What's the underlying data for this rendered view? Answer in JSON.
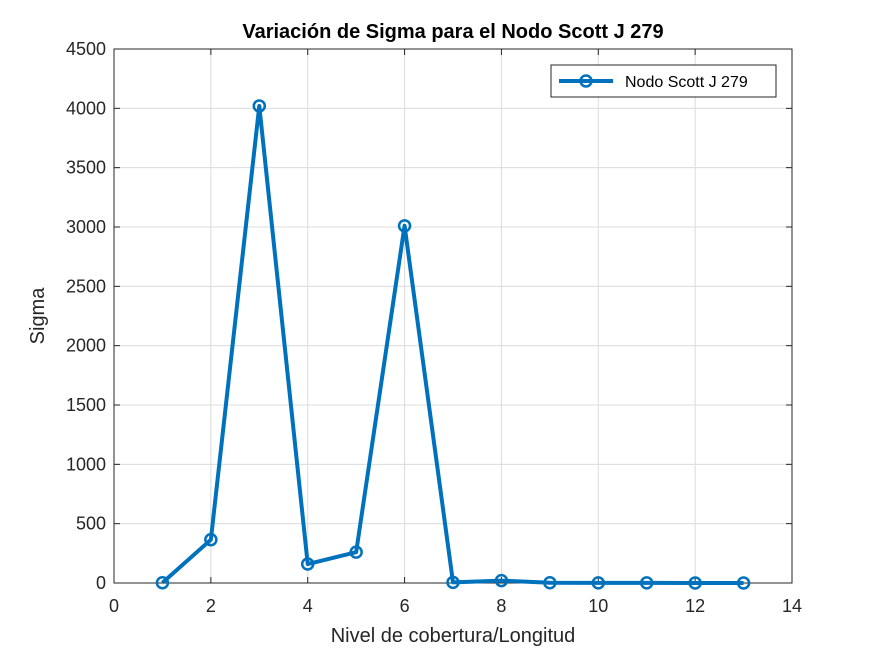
{
  "chart_data": {
    "type": "line",
    "title": "Variación de Sigma para el Nodo Scott J 279",
    "xlabel": "Nivel de cobertura/Longitud",
    "ylabel": "Sigma",
    "xlim": [
      0,
      14
    ],
    "ylim": [
      0,
      4500
    ],
    "xticks": [
      0,
      2,
      4,
      6,
      8,
      10,
      12,
      14
    ],
    "yticks": [
      0,
      500,
      1000,
      1500,
      2000,
      2500,
      3000,
      3500,
      4000,
      4500
    ],
    "grid": true,
    "legend_position": "top-right",
    "line_color": "#0072BD",
    "series": [
      {
        "name": "Nodo Scott J 279",
        "x": [
          1,
          2,
          3,
          4,
          5,
          6,
          7,
          8,
          9,
          10,
          11,
          12,
          13
        ],
        "values": [
          2,
          365,
          4020,
          160,
          260,
          3010,
          5,
          20,
          2,
          1,
          1,
          0,
          0
        ]
      }
    ]
  }
}
